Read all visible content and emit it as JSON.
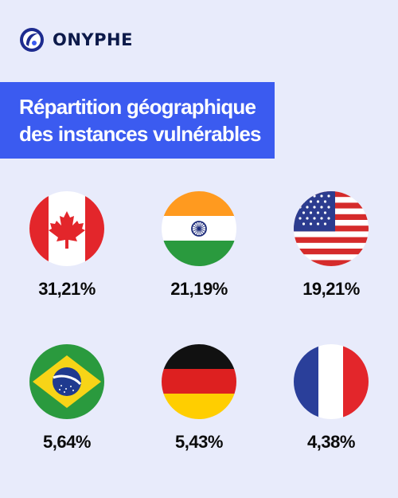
{
  "brand": {
    "name": "ONYPHE"
  },
  "title": {
    "line1": "Répartition géographique",
    "line2": "des instances vulnérables"
  },
  "colors": {
    "background": "#e8ebfb",
    "title_box": "#3b5bf0",
    "brand_text": "#0d1a4a"
  },
  "chart_data": {
    "type": "table",
    "title": "Répartition géographique des instances vulnérables",
    "rows": [
      {
        "country_flag": "canada-flag-icon",
        "value_label": "31,21%",
        "value": 31.21
      },
      {
        "country_flag": "india-flag-icon",
        "value_label": "21,19%",
        "value": 21.19
      },
      {
        "country_flag": "usa-flag-icon",
        "value_label": "19,21%",
        "value": 19.21
      },
      {
        "country_flag": "brazil-flag-icon",
        "value_label": "5,64%",
        "value": 5.64
      },
      {
        "country_flag": "germany-flag-icon",
        "value_label": "5,43%",
        "value": 5.43
      },
      {
        "country_flag": "france-flag-icon",
        "value_label": "4,38%",
        "value": 4.38
      }
    ]
  }
}
